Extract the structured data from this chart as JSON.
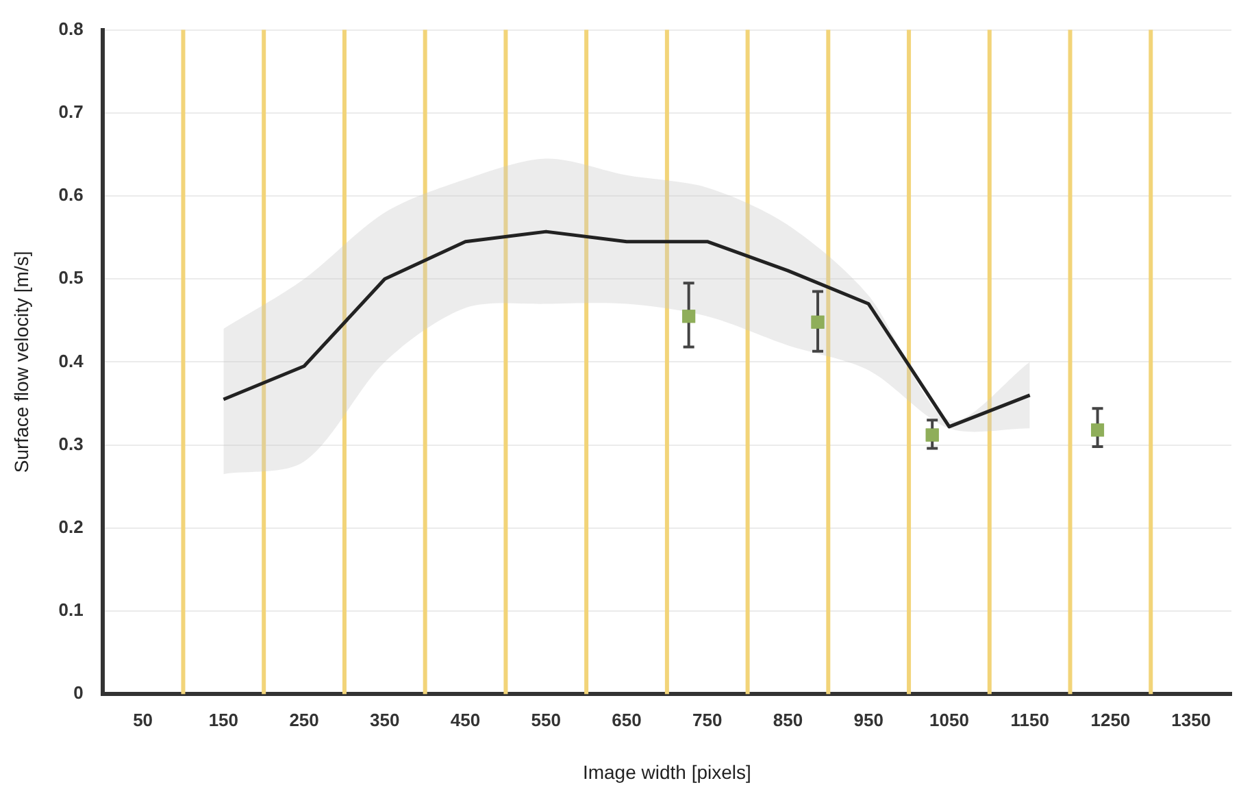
{
  "chart_data": {
    "type": "line",
    "xlabel": "Image width [pixels]",
    "ylabel": "Surface flow velocity [m/s]",
    "xlim": [
      0,
      1400
    ],
    "xticks": [
      50,
      150,
      250,
      350,
      450,
      550,
      650,
      750,
      850,
      950,
      1050,
      1150,
      1250,
      1350
    ],
    "ylim": [
      0,
      0.8
    ],
    "yticks": [
      0,
      0.1,
      0.2,
      0.3,
      0.4,
      0.5,
      0.6,
      0.7,
      0.8
    ],
    "grid": "y",
    "legend": false,
    "marker": "none",
    "line_style": "solid",
    "series": [
      {
        "color": "#222222",
        "x": [
          150,
          250,
          350,
          450,
          550,
          650,
          750,
          850,
          950,
          1050,
          1150
        ],
        "values": [
          0.355,
          0.395,
          0.5,
          0.545,
          0.557,
          0.545,
          0.545,
          0.51,
          0.47,
          0.322,
          0.36
        ],
        "lower": [
          0.265,
          0.28,
          0.4,
          0.465,
          0.47,
          0.47,
          0.455,
          0.42,
          0.39,
          0.32,
          0.32
        ],
        "upper": [
          0.44,
          0.5,
          0.58,
          0.62,
          0.645,
          0.625,
          0.61,
          0.565,
          0.48,
          0.33,
          0.4
        ]
      },
      {
        "type": "scatter",
        "color": "#8fae5a",
        "marker": "square",
        "x": [
          727,
          887,
          1029,
          1234
        ],
        "values": [
          0.455,
          0.448,
          0.312,
          0.318
        ],
        "errors": [
          [
            0.418,
            0.495
          ],
          [
            0.413,
            0.485
          ],
          [
            0.296,
            0.33
          ],
          [
            0.298,
            0.344
          ]
        ]
      }
    ],
    "ref_lines": [
      {
        "axis": "x",
        "value": 100,
        "color": "#f2d479"
      },
      {
        "axis": "x",
        "value": 200,
        "color": "#f2d479"
      },
      {
        "axis": "x",
        "value": 300,
        "color": "#f2d479"
      },
      {
        "axis": "x",
        "value": 400,
        "color": "#f2d479"
      },
      {
        "axis": "x",
        "value": 500,
        "color": "#f2d479"
      },
      {
        "axis": "x",
        "value": 600,
        "color": "#f2d479"
      },
      {
        "axis": "x",
        "value": 700,
        "color": "#f2d479"
      },
      {
        "axis": "x",
        "value": 800,
        "color": "#f2d479"
      },
      {
        "axis": "x",
        "value": 900,
        "color": "#f2d479"
      },
      {
        "axis": "x",
        "value": 1000,
        "color": "#f2d479"
      },
      {
        "axis": "x",
        "value": 1100,
        "color": "#f2d479"
      },
      {
        "axis": "x",
        "value": 1200,
        "color": "#f2d479"
      },
      {
        "axis": "x",
        "value": 1300,
        "color": "#f2d479"
      }
    ]
  }
}
